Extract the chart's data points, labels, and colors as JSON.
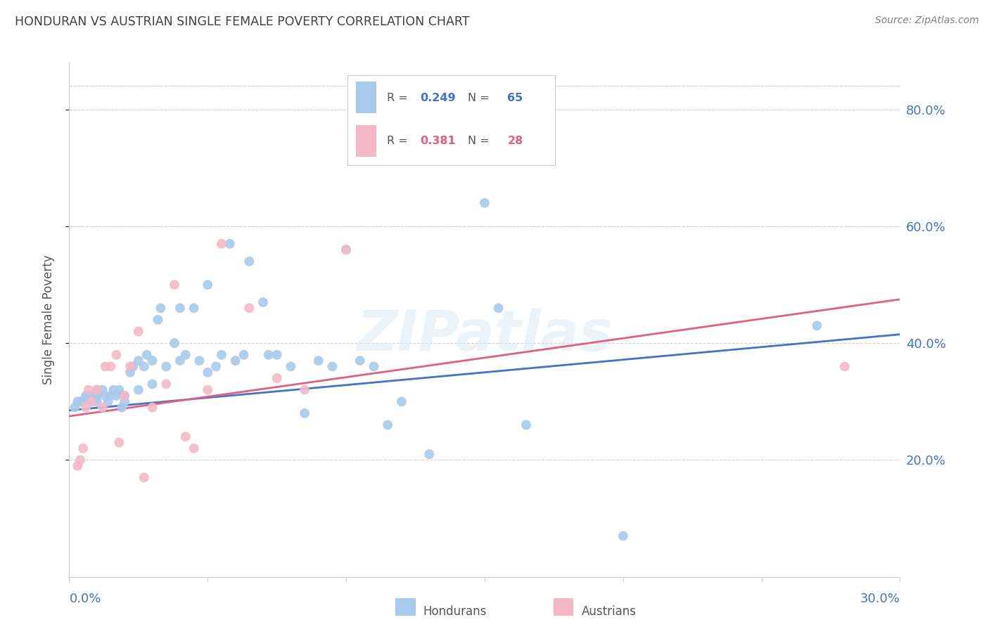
{
  "title": "HONDURAN VS AUSTRIAN SINGLE FEMALE POVERTY CORRELATION CHART",
  "source": "Source: ZipAtlas.com",
  "ylabel": "Single Female Poverty",
  "ytick_values": [
    0.2,
    0.4,
    0.6,
    0.8
  ],
  "xmin": 0.0,
  "xmax": 0.3,
  "ymin": 0.0,
  "ymax": 0.88,
  "legend_blue_r": "0.249",
  "legend_blue_n": "65",
  "legend_pink_r": "0.381",
  "legend_pink_n": "28",
  "blue_color": "#a8caeb",
  "pink_color": "#f4b8c8",
  "blue_line_color": "#4472c4",
  "pink_line_color": "#e06080",
  "watermark": "ZIPatlas",
  "blue_scatter_x": [
    0.002,
    0.003,
    0.004,
    0.005,
    0.006,
    0.007,
    0.008,
    0.009,
    0.01,
    0.01,
    0.01,
    0.01,
    0.012,
    0.013,
    0.014,
    0.015,
    0.016,
    0.017,
    0.018,
    0.019,
    0.02,
    0.02,
    0.022,
    0.023,
    0.025,
    0.025,
    0.027,
    0.028,
    0.03,
    0.03,
    0.032,
    0.033,
    0.035,
    0.038,
    0.04,
    0.04,
    0.042,
    0.045,
    0.047,
    0.05,
    0.05,
    0.053,
    0.055,
    0.058,
    0.06,
    0.063,
    0.065,
    0.07,
    0.072,
    0.075,
    0.08,
    0.085,
    0.09,
    0.095,
    0.1,
    0.105,
    0.11,
    0.115,
    0.12,
    0.13,
    0.15,
    0.155,
    0.165,
    0.2,
    0.27
  ],
  "blue_scatter_y": [
    0.29,
    0.3,
    0.3,
    0.3,
    0.31,
    0.31,
    0.3,
    0.31,
    0.3,
    0.31,
    0.32,
    0.31,
    0.32,
    0.31,
    0.3,
    0.31,
    0.32,
    0.31,
    0.32,
    0.29,
    0.3,
    0.31,
    0.35,
    0.36,
    0.32,
    0.37,
    0.36,
    0.38,
    0.33,
    0.37,
    0.44,
    0.46,
    0.36,
    0.4,
    0.37,
    0.46,
    0.38,
    0.46,
    0.37,
    0.35,
    0.5,
    0.36,
    0.38,
    0.57,
    0.37,
    0.38,
    0.54,
    0.47,
    0.38,
    0.38,
    0.36,
    0.28,
    0.37,
    0.36,
    0.56,
    0.37,
    0.36,
    0.26,
    0.3,
    0.21,
    0.64,
    0.46,
    0.26,
    0.07,
    0.43
  ],
  "pink_scatter_x": [
    0.003,
    0.004,
    0.005,
    0.006,
    0.007,
    0.008,
    0.01,
    0.012,
    0.013,
    0.015,
    0.017,
    0.018,
    0.02,
    0.022,
    0.025,
    0.027,
    0.03,
    0.035,
    0.038,
    0.042,
    0.045,
    0.05,
    0.055,
    0.065,
    0.075,
    0.085,
    0.1,
    0.28
  ],
  "pink_scatter_y": [
    0.19,
    0.2,
    0.22,
    0.29,
    0.32,
    0.3,
    0.32,
    0.29,
    0.36,
    0.36,
    0.38,
    0.23,
    0.31,
    0.36,
    0.42,
    0.17,
    0.29,
    0.33,
    0.5,
    0.24,
    0.22,
    0.32,
    0.57,
    0.46,
    0.34,
    0.32,
    0.56,
    0.36
  ],
  "blue_line_x": [
    0.0,
    0.3
  ],
  "blue_line_y": [
    0.285,
    0.415
  ],
  "pink_line_x": [
    0.0,
    0.3
  ],
  "pink_line_y": [
    0.275,
    0.475
  ],
  "background_color": "#ffffff",
  "grid_color": "#d0d0d0",
  "tick_color": "#4472c4",
  "title_color": "#404040",
  "source_color": "#808080"
}
